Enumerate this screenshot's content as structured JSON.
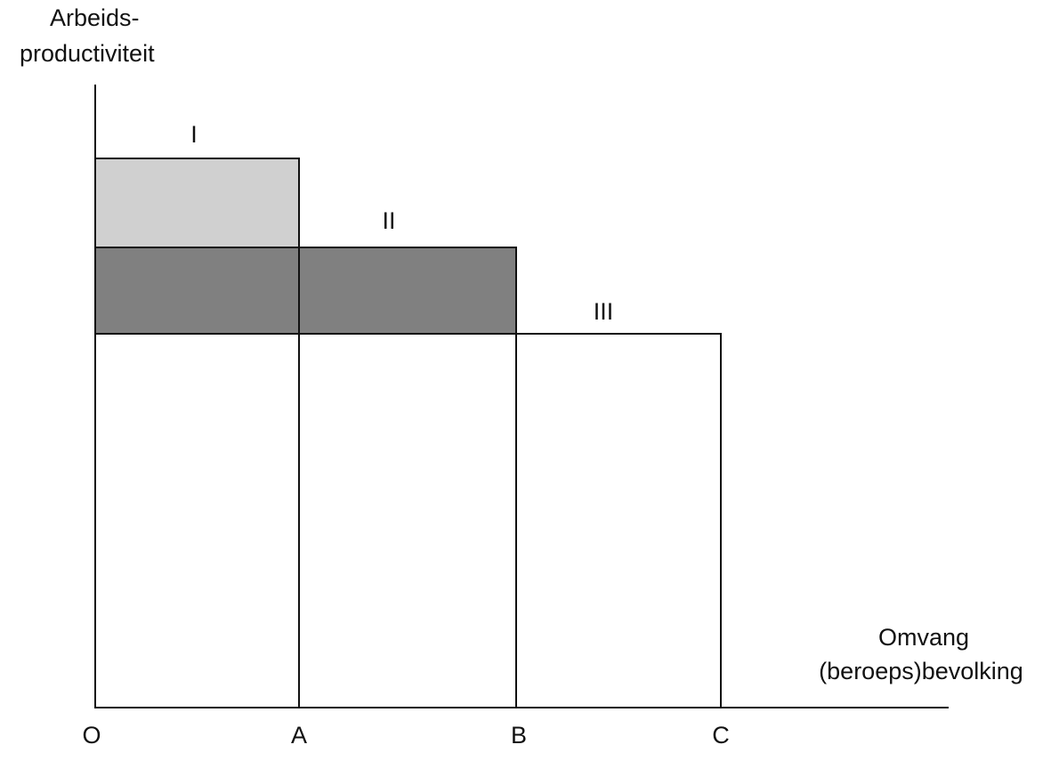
{
  "y_axis_label": [
    "Arbeids-",
    "productiviteit"
  ],
  "x_axis_label": [
    "Omvang",
    "(beroeps)bevolking"
  ],
  "points": [
    "O",
    "A",
    "B",
    "C"
  ],
  "regions": [
    "I",
    "II",
    "III"
  ]
}
